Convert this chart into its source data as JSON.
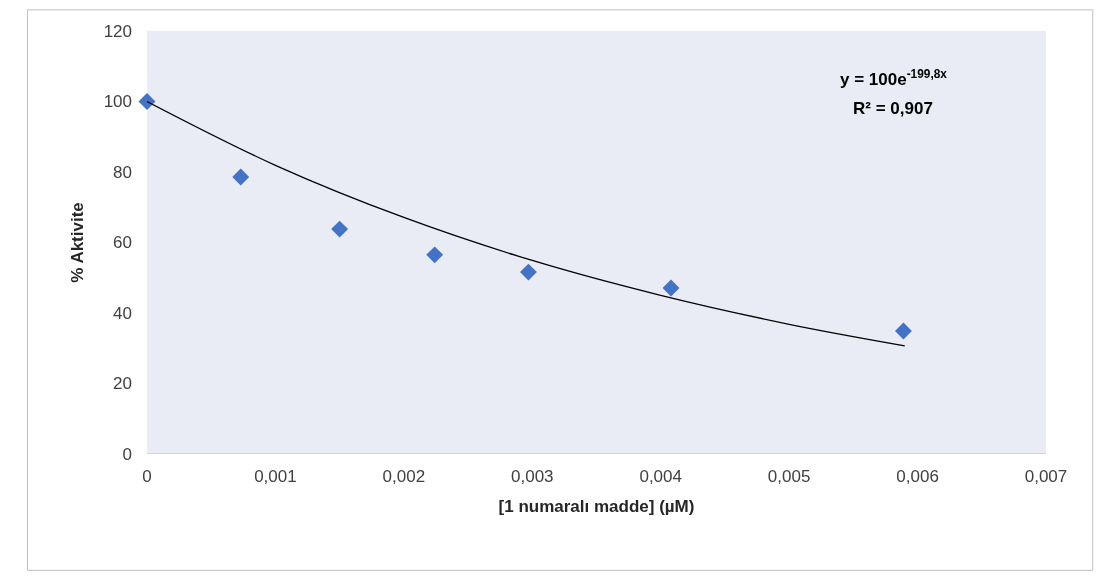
{
  "chart_data": {
    "type": "scatter",
    "xlabel": "[1 numaralı madde] (µM)",
    "ylabel": "% Aktivite",
    "xlim": [
      0,
      0.007
    ],
    "xticks": [
      {
        "value": 0,
        "label": "0"
      },
      {
        "value": 0.001,
        "label": "0,001"
      },
      {
        "value": 0.002,
        "label": "0,002"
      },
      {
        "value": 0.003,
        "label": "0,003"
      },
      {
        "value": 0.004,
        "label": "0,004"
      },
      {
        "value": 0.005,
        "label": "0,005"
      },
      {
        "value": 0.006,
        "label": "0,006"
      },
      {
        "value": 0.007,
        "label": "0,007"
      }
    ],
    "ylim": [
      0,
      120
    ],
    "yticks": [
      0,
      20,
      40,
      60,
      80,
      100,
      120
    ],
    "grid": false,
    "legend": false,
    "marker": "diamond",
    "series": [
      {
        "color": "#4472c4",
        "x": [
          0,
          0.00073,
          0.0015,
          0.00224,
          0.00297,
          0.00408,
          0.00589
        ],
        "values": [
          100,
          78.6,
          63.8,
          56.5,
          51.6,
          47.1,
          34.9
        ]
      },
      {
        "type": "line",
        "color": "#000000",
        "marker": "none",
        "x": [
          0,
          0.001,
          0.002,
          0.003,
          0.004,
          0.005,
          0.0059
        ],
        "values": [
          100,
          81.9,
          67.1,
          54.9,
          45.0,
          36.8,
          30.7
        ]
      }
    ],
    "annotations": [
      "y = 100e$^{-199,8x}$",
      "R² = 0,907"
    ]
  }
}
